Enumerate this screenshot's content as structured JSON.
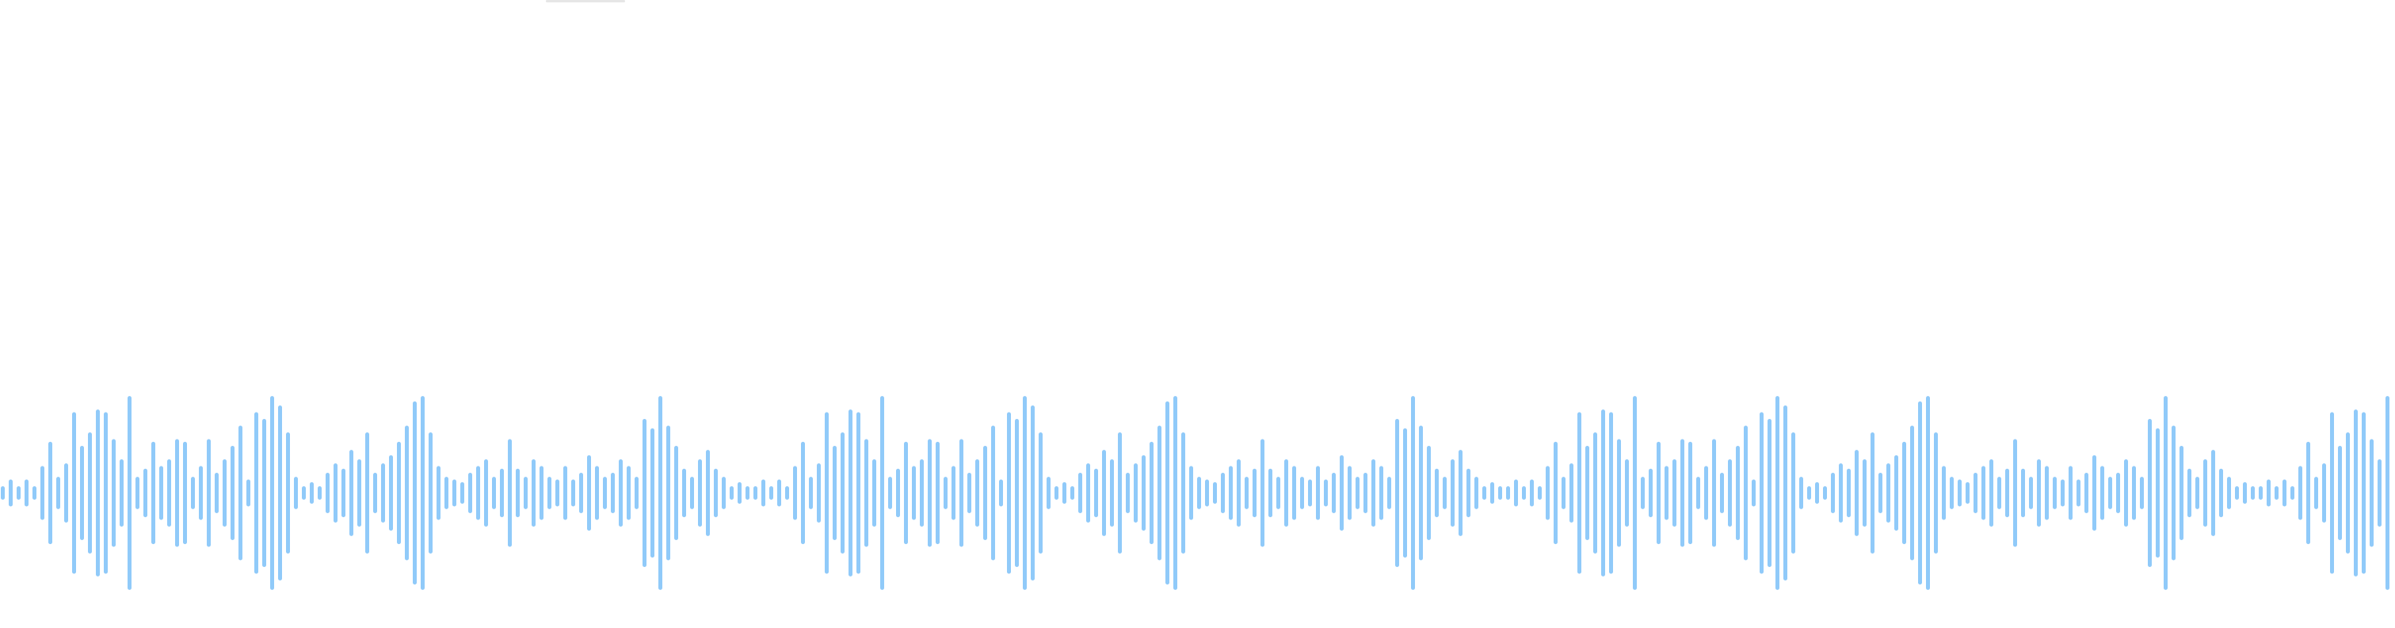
{
  "top_indicator": {
    "icon": "scrub-handle"
  },
  "waveform": {
    "color": "#90caf9",
    "segment_amplitudes": [
      0.05,
      0.1,
      0.05,
      0.1,
      0.05,
      0.2,
      0.38,
      0.12,
      0.22,
      0.6,
      0.35,
      0.45,
      0.62,
      0.6,
      0.4,
      0.25,
      0.72,
      0.12,
      0.18,
      0.38,
      0.2,
      0.25,
      0.4,
      0.38,
      0.12,
      0.2,
      0.4,
      0.15,
      0.25,
      0.35,
      0.5,
      0.1,
      0.6,
      0.55,
      0.72,
      0.65,
      0.45,
      0.12,
      0.05,
      0.08,
      0.05,
      0.15,
      0.22,
      0.18,
      0.32,
      0.25,
      0.45,
      0.15,
      0.22,
      0.28,
      0.38,
      0.5,
      0.68,
      0.72,
      0.45,
      0.2,
      0.12,
      0.1,
      0.08,
      0.15,
      0.2,
      0.25,
      0.12,
      0.18,
      0.4,
      0.18,
      0.12,
      0.25,
      0.2,
      0.12,
      0.1,
      0.2,
      0.1,
      0.15,
      0.28,
      0.2,
      0.12,
      0.15,
      0.25,
      0.2,
      0.12,
      0.55,
      0.48,
      0.72,
      0.5,
      0.35,
      0.18,
      0.12,
      0.25,
      0.32,
      0.18,
      0.12,
      0.05,
      0.08,
      0.05
    ]
  }
}
